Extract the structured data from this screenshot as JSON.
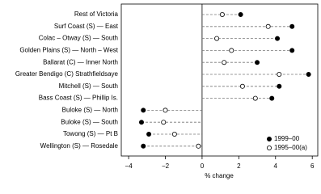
{
  "chart_data": {
    "type": "dot",
    "categories": [
      "Rest of Victoria",
      "Surf Coast (S) — East",
      "Colac – Otway (S) — South",
      "Golden Plains (S) — North – West",
      "Ballarat (C) — Inner North",
      "Greater Bendigo (C) Strathfieldsaye",
      "Mitchell (S) — South",
      "Bass Coast (S) — Phillip Is.",
      "Buloke (S) — North",
      "Buloke (S) — South",
      "Towong (S) — Pt B",
      "Wellington (S) — Rosedale"
    ],
    "series": [
      {
        "name": "1999–00",
        "color": "#000000",
        "filled": true,
        "values": [
          2.1,
          4.9,
          4.1,
          4.9,
          3.0,
          5.8,
          4.2,
          3.8,
          -3.2,
          -3.3,
          -2.9,
          -3.2
        ]
      },
      {
        "name": "1995–00(a)",
        "color": "#000000",
        "filled": false,
        "values": [
          1.1,
          3.6,
          0.8,
          1.6,
          1.2,
          4.2,
          2.2,
          2.9,
          -2.0,
          -2.1,
          -1.5,
          -0.2
        ]
      }
    ],
    "xlabel": "% change",
    "xlim": [
      -4.4,
      6.3
    ],
    "xticks": [
      {
        "value": -4,
        "label": "−4"
      },
      {
        "value": -2,
        "label": "−2"
      },
      0,
      2,
      4,
      6
    ]
  }
}
